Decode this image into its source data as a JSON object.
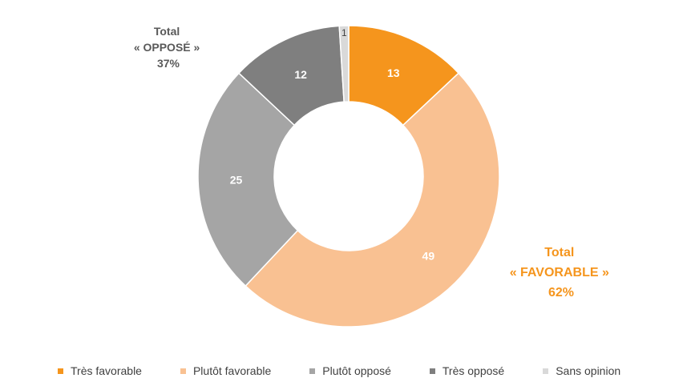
{
  "chart_data": {
    "type": "pie",
    "variant": "donut",
    "categories": [
      "Très favorable",
      "Plutôt favorable",
      "Plutôt opposé",
      "Très opposé",
      "Sans opinion"
    ],
    "values": [
      13,
      49,
      25,
      12,
      1
    ],
    "colors": [
      "#f5951d",
      "#f9c192",
      "#a5a5a5",
      "#7f7f7f",
      "#d9d9d9"
    ],
    "legend_position": "bottom",
    "annotations": [
      {
        "lines": [
          "Total",
          "« OPPOSÉ »",
          "37%"
        ],
        "color": "#595959"
      },
      {
        "lines": [
          "Total",
          "« FAVORABLE »",
          "62%"
        ],
        "color": "#f5951d"
      }
    ]
  }
}
